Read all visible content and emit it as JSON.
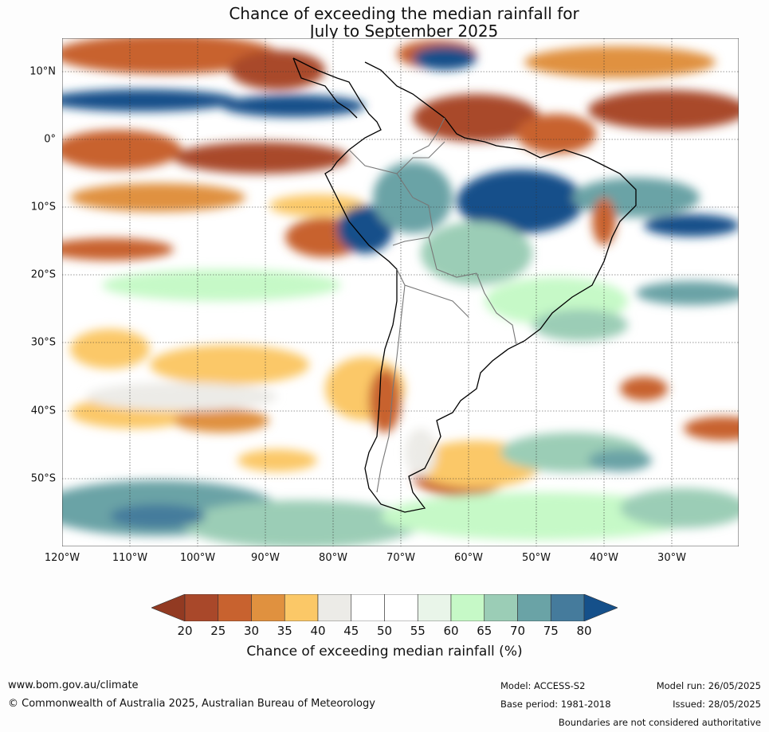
{
  "title": {
    "line1": "Chance of exceeding the median rainfall for",
    "line2": "July to September 2025"
  },
  "map": {
    "region": "South America",
    "lat_labels": [
      "10°N",
      "0°",
      "10°S",
      "20°S",
      "30°S",
      "40°S",
      "50°S"
    ],
    "lon_labels": [
      "120°W",
      "110°W",
      "100°W",
      "90°W",
      "80°W",
      "70°W",
      "60°W",
      "50°W",
      "40°W",
      "30°W"
    ]
  },
  "colorbar": {
    "ticks": [
      "20",
      "25",
      "30",
      "35",
      "40",
      "45",
      "50",
      "55",
      "60",
      "65",
      "70",
      "75",
      "80"
    ],
    "colors": [
      "#a9482a",
      "#c8622f",
      "#e0913f",
      "#fbc867",
      "#ecebe7",
      "#ffffff",
      "#ffffff",
      "#e9f5e9",
      "#c6f9c7",
      "#9bcdb6",
      "#6aa3a6",
      "#457b9c"
    ],
    "under_color": "#923a22",
    "over_color": "#15508a",
    "label": "Chance of exceeding median rainfall (%)"
  },
  "footer": {
    "url": "www.bom.gov.au/climate",
    "copyright": "© Commonwealth of Australia 2025, Australian Bureau of Meteorology",
    "model": "Model: ACCESS-S2",
    "base_period": "Base period: 1981-2018",
    "model_run": "Model run: 26/05/2025",
    "issued": "Issued: 28/05/2025",
    "disclaimer": "Boundaries are not considered authoritative"
  }
}
